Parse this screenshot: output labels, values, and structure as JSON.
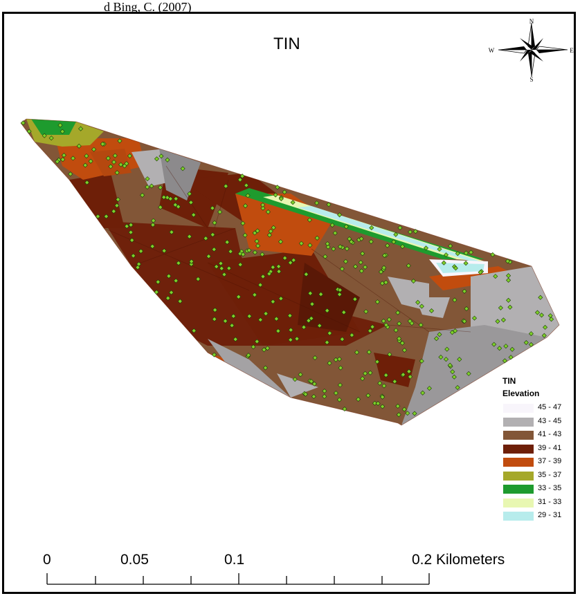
{
  "header_text": "d Bing, C. (2007)",
  "map_title": "TIN",
  "compass": {
    "n": "N",
    "s": "S",
    "e": "E",
    "w": "W"
  },
  "legend": {
    "title": "TIN",
    "subtitle": "Elevation",
    "classes": [
      {
        "label": "45 - 47",
        "color": "#f8f5fb"
      },
      {
        "label": "43 - 45",
        "color": "#b2b0b2"
      },
      {
        "label": "41 - 43",
        "color": "#825637"
      },
      {
        "label": "39 - 41",
        "color": "#6e1f08"
      },
      {
        "label": "37 - 39",
        "color": "#c14c0e"
      },
      {
        "label": "35 - 37",
        "color": "#a5a82a"
      },
      {
        "label": "33 - 35",
        "color": "#1e9b2e"
      },
      {
        "label": "31 - 33",
        "color": "#e8f7b2"
      },
      {
        "label": "29 - 31",
        "color": "#b7ecec"
      }
    ]
  },
  "scale_bar": {
    "labels": [
      "0",
      "0.05",
      "0.1",
      "0.2 Kilometers"
    ]
  },
  "point_color": "#7ecf2a"
}
